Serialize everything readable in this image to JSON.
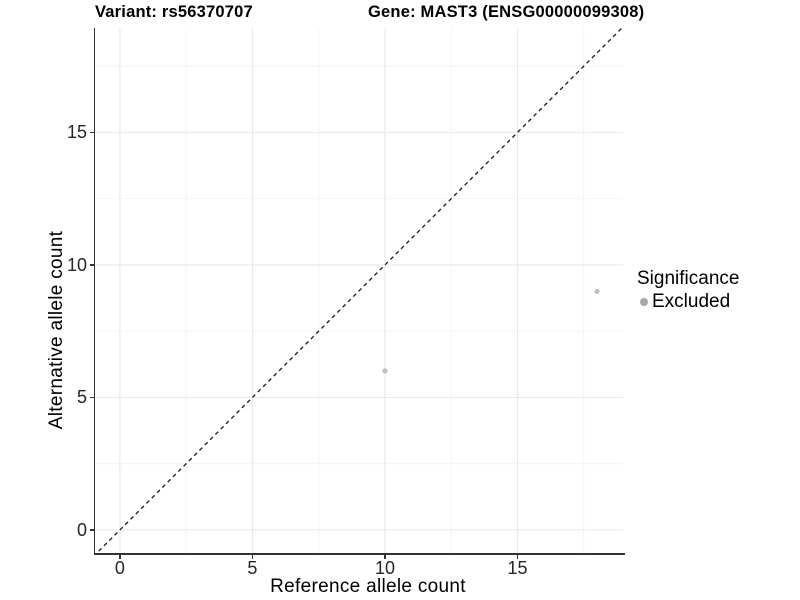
{
  "figure": {
    "background": "#ffffff",
    "title_left": "Variant: rs56370707",
    "title_right": "Gene: MAST3 (ENSG00000099308)"
  },
  "axes": {
    "x_title": "Reference allele count",
    "y_title": "Alternative allele count",
    "x_tick_labels": [
      "0",
      "5",
      "10",
      "15"
    ],
    "y_tick_labels": [
      "0",
      "5",
      "10",
      "15"
    ]
  },
  "legend": {
    "title": "Significance",
    "items": [
      {
        "label": "Excluded",
        "marker": "dot",
        "color": "#a6a6a6"
      }
    ]
  },
  "chart_data": {
    "type": "scatter",
    "title": "Variant: rs56370707 / Gene: MAST3 (ENSG00000099308)",
    "xlabel": "Reference allele count",
    "ylabel": "Alternative allele count",
    "xlim": [
      -0.94,
      18.98
    ],
    "ylim": [
      -0.87,
      18.94
    ],
    "x_major_ticks": [
      0,
      5,
      10,
      15
    ],
    "y_major_ticks": [
      0,
      5,
      10,
      15
    ],
    "x_minor_ticks": [
      2.5,
      7.5,
      12.5,
      17.5
    ],
    "y_minor_ticks": [
      2.5,
      7.5,
      12.5,
      17.5
    ],
    "grid": "major+minor",
    "legend_position": "right",
    "series": [
      {
        "name": "Excluded",
        "color": "#bebebe",
        "marker": "circle",
        "points": [
          [
            10,
            6
          ],
          [
            18,
            9
          ]
        ]
      }
    ],
    "reference_line": {
      "type": "y=x",
      "style": "dashed",
      "color": "#1a1a1a"
    }
  },
  "colors": {
    "grid_major": "#e9e9e9",
    "grid_minor": "#f4f4f4",
    "axis_line": "#333333",
    "tick_mark": "#333333"
  }
}
